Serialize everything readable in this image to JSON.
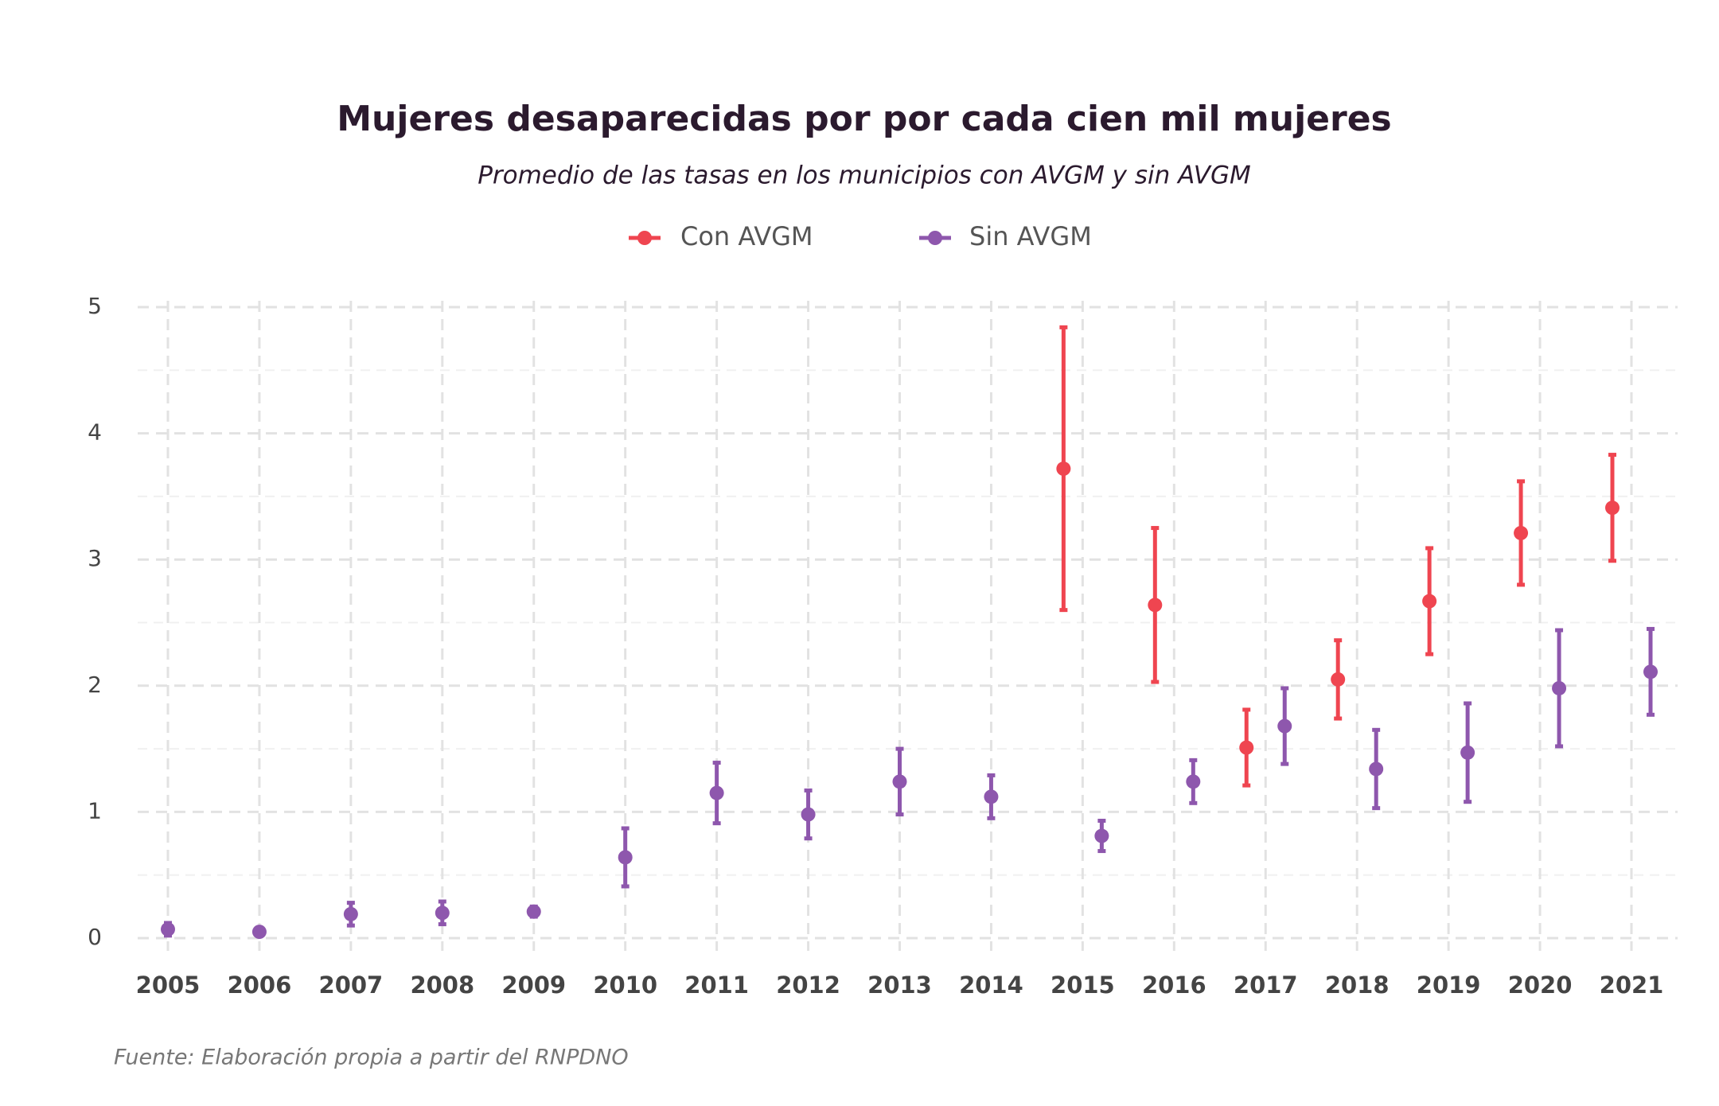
{
  "chart_data": {
    "type": "errorbar",
    "title": "Mujeres desaparecidas por por cada cien mil mujeres",
    "subtitle": "Promedio de las tasas en los municipios con AVGM y sin AVGM",
    "source": "Fuente: Elaboración propia a partir del RNPDNO",
    "categories": [
      "2005",
      "2006",
      "2007",
      "2008",
      "2009",
      "2010",
      "2011",
      "2012",
      "2013",
      "2014",
      "2015",
      "2016",
      "2017",
      "2018",
      "2019",
      "2020",
      "2021"
    ],
    "series": [
      {
        "name": "Con AVGM",
        "color": "#ef4550",
        "values": [
          null,
          null,
          null,
          null,
          null,
          null,
          null,
          null,
          null,
          null,
          3.72,
          2.64,
          1.51,
          2.05,
          2.67,
          3.21,
          3.41
        ],
        "errors": [
          null,
          null,
          null,
          null,
          null,
          null,
          null,
          null,
          null,
          null,
          1.12,
          0.61,
          0.3,
          0.31,
          0.42,
          0.41,
          0.42
        ]
      },
      {
        "name": "Sin AVGM",
        "color": "#8e57ad",
        "values": [
          0.07,
          0.05,
          0.19,
          0.2,
          0.21,
          0.64,
          1.15,
          0.98,
          1.24,
          1.12,
          0.81,
          1.24,
          1.68,
          1.34,
          1.47,
          1.98,
          2.11
        ],
        "errors": [
          0.05,
          0.01,
          0.09,
          0.09,
          0.04,
          0.23,
          0.24,
          0.19,
          0.26,
          0.17,
          0.12,
          0.17,
          0.3,
          0.31,
          0.39,
          0.46,
          0.34
        ]
      }
    ],
    "ylim": [
      0,
      5
    ],
    "yticks": [
      0,
      1,
      2,
      3,
      4,
      5
    ],
    "grid": true
  }
}
